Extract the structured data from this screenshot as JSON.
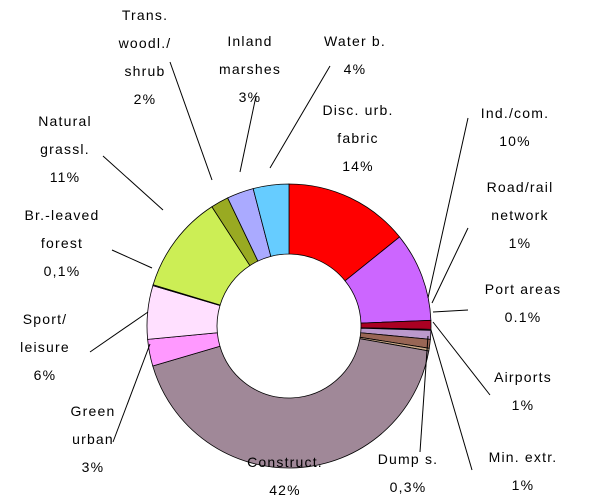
{
  "chart_data": {
    "type": "donut",
    "categories": [
      "Disc. urb.\nfabric",
      "Ind./com.",
      "Road/rail\nnetwork",
      "Port areas",
      "Airports",
      "Min. extr.",
      "Dump s.",
      "Construct.",
      "Green\nurban",
      "Sport/\nleisure",
      "Br.-leaved\nforest",
      "Natural\ngrassl.",
      "Trans.\nwoodl./\nshrub",
      "Inland\nmarshes",
      "Water b."
    ],
    "values": [
      14,
      10,
      1,
      0.1,
      1,
      1,
      0.3,
      42,
      3,
      6,
      0.1,
      11,
      2,
      3,
      4
    ],
    "value_labels": [
      "14%",
      "10%",
      "1%",
      "0.1%",
      "1%",
      "1%",
      "0,3%",
      "42%",
      "3%",
      "6%",
      "0,1%",
      "11%",
      "2%",
      "3%",
      "4%"
    ],
    "colors": [
      "#ff0000",
      "#cc66ff",
      "#aa0022",
      "#ffccee",
      "#bb99cc",
      "#996655",
      "#ccaa88",
      "#a08898",
      "#ff99ff",
      "#ffe0ff",
      "#ffffcc",
      "#ccee55",
      "#99aa22",
      "#aaaaff",
      "#66ccff"
    ]
  }
}
